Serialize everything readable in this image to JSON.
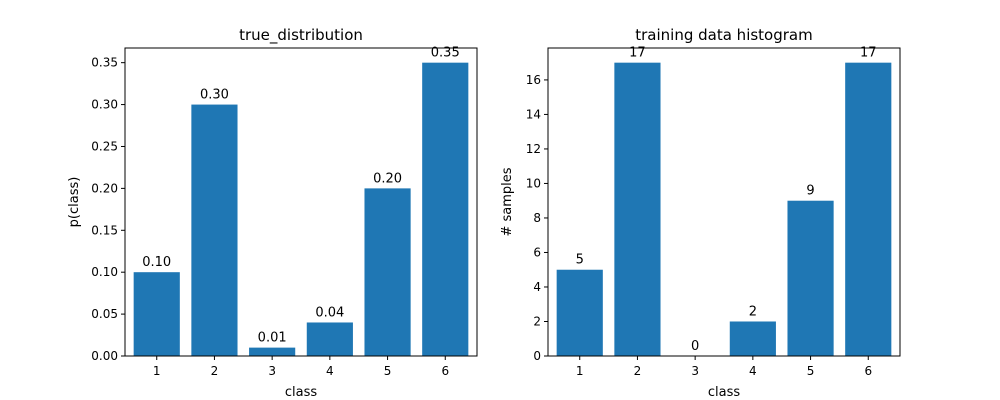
{
  "chart_data": [
    {
      "type": "bar",
      "title": "true_distribution",
      "xlabel": "class",
      "ylabel": "p(class)",
      "categories": [
        "1",
        "2",
        "3",
        "4",
        "5",
        "6"
      ],
      "values": [
        0.1,
        0.3,
        0.01,
        0.04,
        0.2,
        0.35
      ],
      "value_labels": [
        "0.10",
        "0.30",
        "0.01",
        "0.04",
        "0.20",
        "0.35"
      ],
      "ylim": [
        0,
        0.3675
      ],
      "yticks": [
        0,
        0.05,
        0.1,
        0.15,
        0.2,
        0.25,
        0.3,
        0.35
      ],
      "ytick_labels": [
        "0.00",
        "0.05",
        "0.10",
        "0.15",
        "0.20",
        "0.25",
        "0.30",
        "0.35"
      ],
      "bar_color": "#1f77b4",
      "grid": false
    },
    {
      "type": "bar",
      "title": "training data histogram",
      "xlabel": "class",
      "ylabel": "# samples",
      "categories": [
        "1",
        "2",
        "3",
        "4",
        "5",
        "6"
      ],
      "values": [
        5,
        17,
        0,
        2,
        9,
        17
      ],
      "value_labels": [
        "5",
        "17",
        "0",
        "2",
        "9",
        "17"
      ],
      "ylim": [
        0,
        17.85
      ],
      "yticks": [
        0,
        2,
        4,
        6,
        8,
        10,
        12,
        14,
        16
      ],
      "ytick_labels": [
        "0",
        "2",
        "4",
        "6",
        "8",
        "10",
        "12",
        "14",
        "16"
      ],
      "bar_color": "#1f77b4",
      "grid": false
    }
  ]
}
